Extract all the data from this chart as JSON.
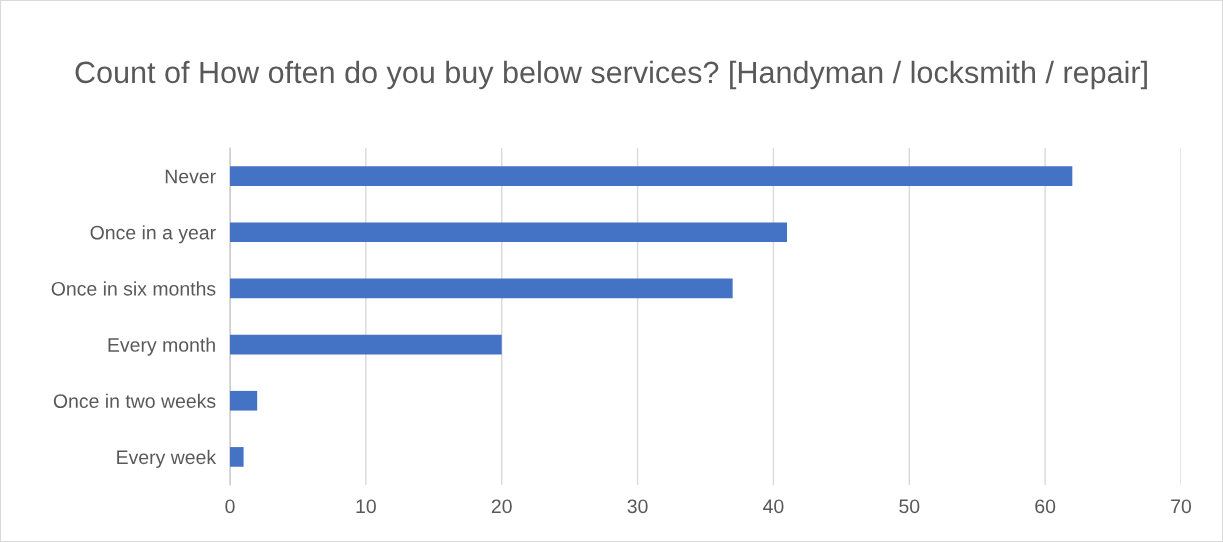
{
  "chart_data": {
    "type": "bar",
    "orientation": "horizontal",
    "title": "Count of How often do you buy below services? [Handyman / locksmith / repair]",
    "categories": [
      "Never",
      "Once in a year",
      "Once in six months",
      "Every month",
      "Once in two weeks",
      "Every week"
    ],
    "values": [
      62,
      41,
      37,
      20,
      2,
      1
    ],
    "color": "#4472c4",
    "xlim": [
      0,
      70
    ],
    "xticks": [
      0,
      10,
      20,
      30,
      40,
      50,
      60,
      70
    ],
    "grid": "x",
    "legend": false
  }
}
